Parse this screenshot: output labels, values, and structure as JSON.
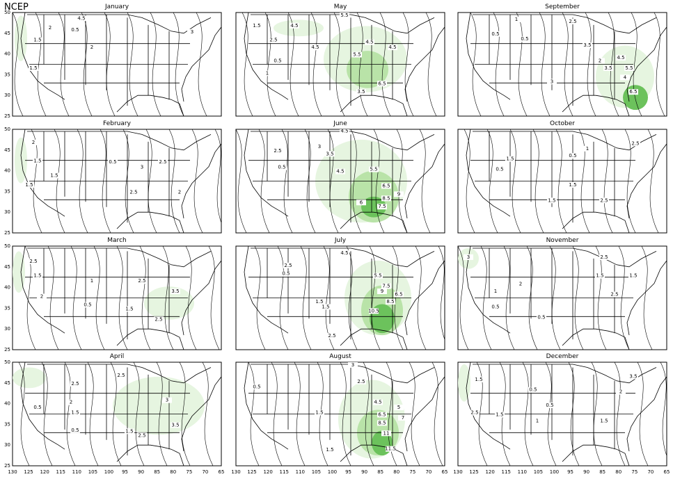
{
  "header": {
    "label": "NCEP"
  },
  "axes": {
    "x_ticks": [
      "130",
      "125",
      "120",
      "115",
      "110",
      "105",
      "100",
      "95",
      "90",
      "85",
      "80",
      "75",
      "70",
      "65"
    ],
    "y_ticks": [
      "25",
      "30",
      "35",
      "40",
      "45",
      "50"
    ]
  },
  "colors": {
    "shade_low": "#e6f5e0",
    "shade_mid": "#b9e3a8",
    "shade_high": "#6cc25c",
    "shade_max": "#2f9b33",
    "contour": "#000000"
  },
  "panels": [
    {
      "title": "January",
      "labels": [
        "4.5",
        "2",
        "0.5",
        "1.5",
        "1.5",
        "2",
        "3"
      ]
    },
    {
      "title": "May",
      "labels": [
        "5.5",
        "1.5",
        "4.5",
        "2.5",
        "4.5",
        "5.5",
        "6.5",
        "3.5",
        "4.5",
        "4.5",
        "0.5",
        "1"
      ]
    },
    {
      "title": "September",
      "labels": [
        "2.5",
        "1",
        "0.5",
        "0.5",
        "3.5",
        "4.5",
        "5.5",
        "3",
        "6.5",
        "4",
        "3.5",
        "2"
      ]
    },
    {
      "title": "February",
      "labels": [
        "2",
        "1.5",
        "1.5",
        "0.5",
        "2.5",
        "2",
        "3",
        "2.5",
        "1.5"
      ]
    },
    {
      "title": "June",
      "labels": [
        "4.5",
        "3",
        "3.5",
        "2.5",
        "0.5",
        "4.5",
        "5.5",
        "6.5",
        "8.5",
        "7.5",
        "9",
        "6"
      ]
    },
    {
      "title": "October",
      "labels": [
        "1.5",
        "0.5",
        "1",
        "0.5",
        "2.5",
        "1.5",
        "2.5",
        "1.5"
      ]
    },
    {
      "title": "March",
      "labels": [
        "2.5",
        "1.5",
        "2",
        "1",
        "2.5",
        "0.5",
        "1.5",
        "2.5",
        "3.5"
      ]
    },
    {
      "title": "July",
      "labels": [
        "4.5",
        "2.5",
        "1.5",
        "0.5",
        "1.5",
        "7.5",
        "8.5",
        "10.5",
        "9",
        "6.5",
        "5.5",
        "2.5"
      ]
    },
    {
      "title": "November",
      "labels": [
        "3",
        "2.5",
        "1.5",
        "0.5",
        "0.5",
        "2.5",
        "1",
        "2",
        "1.5"
      ]
    },
    {
      "title": "April",
      "labels": [
        "2.5",
        "2.5",
        "2",
        "1.5",
        "0.5",
        "0.5",
        "1.5",
        "2.5",
        "3.5",
        "3"
      ]
    },
    {
      "title": "August",
      "labels": [
        "3",
        "2.5",
        "0.5",
        "1.5",
        "4.5",
        "6.5",
        "8.5",
        "11",
        "11.5",
        "1.5",
        "5",
        "7"
      ]
    },
    {
      "title": "December",
      "labels": [
        "1.5",
        "2.5",
        "0.5",
        "1.5",
        "0.5",
        "1",
        "2",
        "1.5",
        "3.5"
      ]
    }
  ]
}
